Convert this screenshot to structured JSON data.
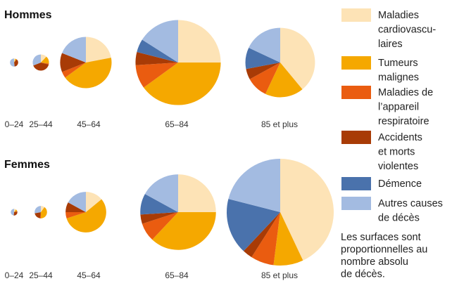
{
  "chart_data": {
    "type": "pie",
    "note_lines": [
      "Les surfaces sont",
      "proportionnelles au",
      "nombre absolu",
      "de décès."
    ],
    "legend": [
      {
        "lines": [
          "Maladies",
          "cardiovascu-",
          "laires"
        ],
        "color": "#fde3b6",
        "icon": "swatch-square"
      },
      {
        "lines": [
          "Tumeurs",
          "malignes"
        ],
        "color": "#f5a800",
        "icon": "swatch-square"
      },
      {
        "lines": [
          "Maladies de",
          "l’appareil",
          "respiratoire"
        ],
        "color": "#ea5c10",
        "icon": "swatch-square"
      },
      {
        "lines": [
          "Accidents",
          "et morts",
          "violentes"
        ],
        "color": "#a83b06",
        "icon": "swatch-square"
      },
      {
        "lines": [
          "Démence"
        ],
        "color": "#4a72ac",
        "icon": "swatch-square"
      },
      {
        "lines": [
          "Autres causes",
          "de décès"
        ],
        "color": "#a3bbe1",
        "icon": "swatch-square"
      }
    ],
    "categories": [
      "Maladies cardiovasculaires",
      "Tumeurs malignes",
      "Maladies de l’appareil respiratoire",
      "Accidents et morts violentes",
      "Démence",
      "Autres causes de décès"
    ],
    "panels": [
      {
        "title": "Hommes",
        "pies": [
          {
            "label": "0–24",
            "values": [
              5,
              5,
              1,
              37,
              0,
              52
            ],
            "relative_size": 0.003
          },
          {
            "label": "25–44",
            "values": [
              12,
              15,
              2,
              40,
              0,
              31
            ],
            "relative_size": 0.012
          },
          {
            "label": "45–64",
            "values": [
              22,
              43,
              4,
              12,
              0,
              19
            ],
            "relative_size": 0.12
          },
          {
            "label": "65–84",
            "values": [
              25,
              40,
              9,
              5,
              5,
              16
            ],
            "relative_size": 0.33
          },
          {
            "label": "85 et plus",
            "values": [
              39,
              18,
              10,
              5,
              10,
              18
            ],
            "relative_size": 0.22
          }
        ]
      },
      {
        "title": "Femmes",
        "pies": [
          {
            "label": "0–24",
            "values": [
              10,
              10,
              2,
              30,
              0,
              48
            ],
            "relative_size": 0.002
          },
          {
            "label": "25–44",
            "values": [
              10,
              40,
              2,
              20,
              0,
              28
            ],
            "relative_size": 0.007
          },
          {
            "label": "45–64",
            "values": [
              14,
              56,
              5,
              8,
              0,
              17
            ],
            "relative_size": 0.075
          },
          {
            "label": "65–84",
            "values": [
              25,
              37,
              8,
              4,
              9,
              17
            ],
            "relative_size": 0.26
          },
          {
            "label": "85 et plus",
            "values": [
              43,
              9,
              7,
              3,
              17,
              21
            ],
            "relative_size": 0.52
          }
        ]
      }
    ]
  }
}
